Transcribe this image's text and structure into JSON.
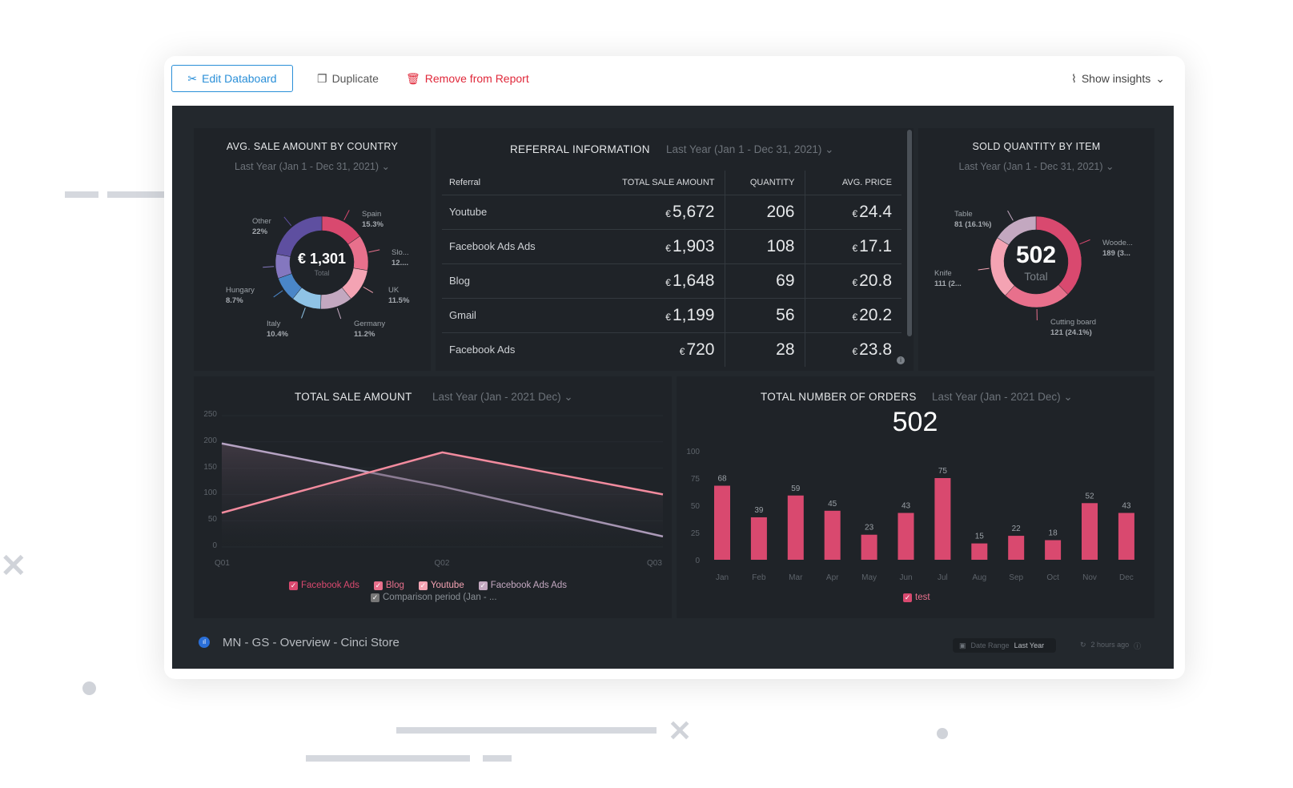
{
  "toolbar": {
    "edit": "Edit Databoard",
    "duplicate": "Duplicate",
    "remove": "Remove from Report",
    "insights": "Show insights"
  },
  "country": {
    "title": "AVG. SALE AMOUNT BY COUNTRY",
    "range": "Last Year (Jan 1 - Dec 31, 2021)",
    "total": "€ 1,301",
    "total_label": "Total",
    "slices": [
      {
        "name": "Spain",
        "pct": "15.3%",
        "color": "#d9496f"
      },
      {
        "name": "Slo...",
        "pct": "12....",
        "color": "#e8708c"
      },
      {
        "name": "UK",
        "pct": "11.5%",
        "color": "#f4a3b3"
      },
      {
        "name": "Germany",
        "pct": "11.2%",
        "color": "#c3a8c0"
      },
      {
        "name": "Italy",
        "pct": "10.4%",
        "color": "#8fc3e6"
      },
      {
        "name": "Hungary",
        "pct": "8.7%",
        "color": "#4a86c8"
      },
      {
        "name": "Other",
        "pct": "22%",
        "color": "#5e4fa0"
      }
    ]
  },
  "referral": {
    "title": "REFERRAL INFORMATION",
    "range": "Last Year (Jan 1 - Dec 31, 2021)",
    "headers": [
      "Referral",
      "TOTAL SALE AMOUNT",
      "QUANTITY",
      "AVG. PRICE"
    ],
    "currency": "€",
    "rows": [
      [
        "Youtube",
        "5,672",
        "206",
        "24.4"
      ],
      [
        "Facebook Ads Ads",
        "1,903",
        "108",
        "17.1"
      ],
      [
        "Blog",
        "1,648",
        "69",
        "20.8"
      ],
      [
        "Gmail",
        "1,199",
        "56",
        "20.2"
      ],
      [
        "Facebook Ads",
        "720",
        "28",
        "23.8"
      ]
    ]
  },
  "items": {
    "title": "SOLD QUANTITY BY ITEM",
    "range": "Last Year (Jan 1 - Dec 31, 2021)",
    "total": "502",
    "total_label": "Total",
    "slices": [
      {
        "name": "Woode...",
        "value": 189,
        "detail": "189 (3...",
        "color": "#d9496f"
      },
      {
        "name": "Cutting board",
        "value": 121,
        "detail": "121 (24.1%)",
        "color": "#e8708c"
      },
      {
        "name": "Knife",
        "value": 111,
        "detail": "111 (2...",
        "color": "#f4a3b3"
      },
      {
        "name": "Table",
        "value": 81,
        "detail": "81 (16.1%)",
        "color": "#c3a8c0"
      }
    ]
  },
  "chart_data": [
    {
      "type": "line",
      "title": "TOTAL SALE AMOUNT",
      "range": "Last Year (Jan - 2021 Dec)",
      "x": [
        "Q01",
        "Q02",
        "Q03"
      ],
      "ylim": [
        0,
        250
      ],
      "yticks": [
        0,
        50,
        100,
        150,
        200,
        250
      ],
      "series": [
        {
          "name": "Facebook Ads",
          "values": [
            65,
            180,
            100
          ],
          "color": "#f28b9e"
        },
        {
          "name": "Comparison period (Jan - ...",
          "values": [
            197,
            115,
            20
          ],
          "color": "#b6a3c3"
        }
      ],
      "legend": [
        {
          "name": "Facebook Ads",
          "color": "#d9496f"
        },
        {
          "name": "Blog",
          "color": "#e8708c"
        },
        {
          "name": "Youtube",
          "color": "#f4a3b3"
        },
        {
          "name": "Facebook Ads Ads",
          "color": "#c3a8c0"
        },
        {
          "name": "Comparison period (Jan - ...",
          "color": "#777"
        }
      ],
      "legend_position": "bottom"
    },
    {
      "type": "bar",
      "title": "TOTAL NUMBER OF ORDERS",
      "range": "Last Year (Jan - 2021 Dec)",
      "total": "502",
      "categories": [
        "Jan",
        "Feb",
        "Mar",
        "Apr",
        "May",
        "Jun",
        "Jul",
        "Aug",
        "Sep",
        "Oct",
        "Nov",
        "Dec"
      ],
      "values": [
        68,
        39,
        59,
        45,
        23,
        43,
        75,
        15,
        22,
        18,
        52,
        43
      ],
      "ylim": [
        0,
        100
      ],
      "yticks": [
        0,
        25,
        50,
        75,
        100
      ],
      "series_name": "test",
      "color": "#d9496f",
      "legend_position": "bottom"
    }
  ],
  "footer": {
    "name": "MN - GS - Overview - Cinci Store",
    "date_range_label": "Date Range",
    "date_range_value": "Last Year",
    "updated": "2 hours ago"
  }
}
